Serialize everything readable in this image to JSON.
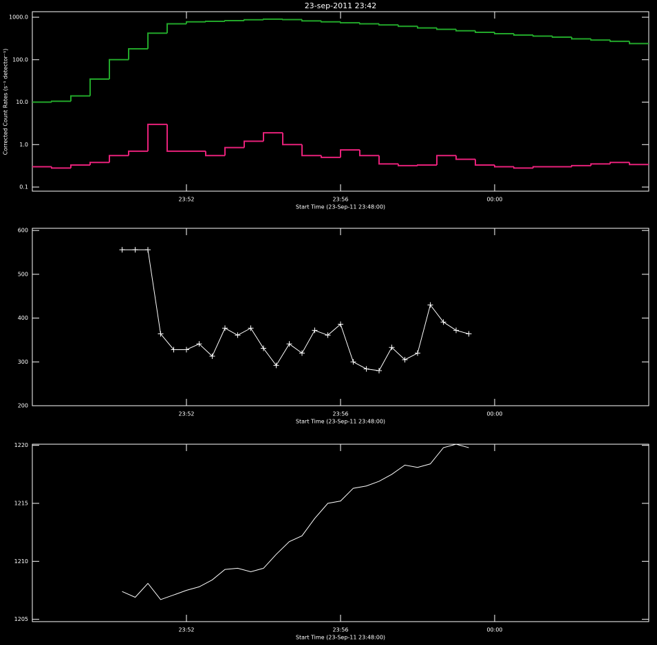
{
  "chart_data": [
    {
      "type": "step",
      "title": "23-sep-2011 23:42",
      "ylabel": "Corrected Count Rates (s⁻¹ detector⁻¹)",
      "xlabel": "Start Time (23-Sep-11 23:48:00)",
      "ylog": true,
      "xlim": [
        0,
        16
      ],
      "ylim": [
        0.08,
        1350
      ],
      "xticks": [
        {
          "value": 4,
          "label": "23:52"
        },
        {
          "value": 8,
          "label": "23:56"
        },
        {
          "value": 12,
          "label": "00:00"
        }
      ],
      "yticks": [
        0.1,
        {
          "value": 1,
          "label": "1.0"
        },
        {
          "value": 10,
          "label": "10.0"
        },
        {
          "value": 100,
          "label": "100.0"
        },
        {
          "value": 1000,
          "label": "1000.0"
        }
      ],
      "x": [
        0.25,
        0.75,
        1.25,
        1.75,
        2.25,
        2.75,
        3.25,
        3.75,
        4.25,
        4.75,
        5.25,
        5.75,
        6.25,
        6.75,
        7.25,
        7.75,
        8.25,
        8.75,
        9.25,
        9.75,
        10.25,
        10.75,
        11.25,
        11.75,
        12.25,
        12.75,
        13.25,
        13.75,
        14.25,
        14.75,
        15.25,
        15.75
      ],
      "series": [
        {
          "color": "#22a82a",
          "values": [
            10,
            10.5,
            14,
            35,
            100,
            180,
            420,
            700,
            780,
            800,
            830,
            870,
            900,
            880,
            820,
            780,
            740,
            700,
            660,
            610,
            560,
            520,
            480,
            440,
            410,
            380,
            360,
            340,
            310,
            290,
            270,
            240
          ]
        },
        {
          "color": "#e8217a",
          "values": [
            0.3,
            0.28,
            0.33,
            0.38,
            0.55,
            0.7,
            3.0,
            0.7,
            0.7,
            0.55,
            0.85,
            1.2,
            1.9,
            1.0,
            0.55,
            0.5,
            0.75,
            0.55,
            0.35,
            0.32,
            0.33,
            0.55,
            0.45,
            0.33,
            0.3,
            0.28,
            0.3,
            0.3,
            0.32,
            0.35,
            0.38,
            0.34
          ]
        }
      ]
    },
    {
      "type": "line",
      "markers": true,
      "xlabel": "Start Time (23-Sep-11 23:48:00)",
      "xlim": [
        0,
        16
      ],
      "ylim": [
        200,
        605
      ],
      "xticks": [
        {
          "value": 4,
          "label": "23:52"
        },
        {
          "value": 8,
          "label": "23:56"
        },
        {
          "value": 12,
          "label": "00:00"
        }
      ],
      "yticks": [
        200,
        300,
        400,
        500,
        600
      ],
      "x": [
        2.33,
        2.67,
        3,
        3.33,
        3.67,
        4,
        4.33,
        4.67,
        5,
        5.33,
        5.67,
        6,
        6.33,
        6.67,
        7,
        7.33,
        7.67,
        8,
        8.33,
        8.67,
        9,
        9.33,
        9.67,
        10,
        10.33,
        10.67,
        11,
        11.33
      ],
      "series": [
        {
          "color": "#ffffff",
          "values": [
            556,
            556,
            556,
            364,
            328,
            328,
            341,
            313,
            377,
            361,
            377,
            331,
            292,
            341,
            320,
            372,
            361,
            386,
            300,
            284,
            280,
            333,
            305,
            320,
            430,
            391,
            372,
            364
          ]
        }
      ]
    },
    {
      "type": "line",
      "markers": false,
      "xlabel": "Start Time (23-Sep-11 23:48:00)",
      "xlim": [
        0,
        16
      ],
      "ylim": [
        1204.8,
        1220.1
      ],
      "xticks": [
        {
          "value": 4,
          "label": "23:52"
        },
        {
          "value": 8,
          "label": "23:56"
        },
        {
          "value": 12,
          "label": "00:00"
        }
      ],
      "yticks": [
        1205,
        1210,
        1215,
        1220
      ],
      "x": [
        2.33,
        2.67,
        3,
        3.33,
        3.67,
        4,
        4.33,
        4.67,
        5,
        5.33,
        5.67,
        6,
        6.33,
        6.67,
        7,
        7.33,
        7.67,
        8,
        8.33,
        8.67,
        9,
        9.33,
        9.67,
        10,
        10.33,
        10.67,
        11,
        11.33
      ],
      "series": [
        {
          "color": "#ffffff",
          "values": [
            1207.4,
            1206.9,
            1208.1,
            1206.7,
            1207.1,
            1207.5,
            1207.8,
            1208.4,
            1209.3,
            1209.4,
            1209.1,
            1209.4,
            1210.6,
            1211.7,
            1212.2,
            1213.7,
            1215.0,
            1215.2,
            1216.3,
            1216.5,
            1216.9,
            1217.5,
            1218.3,
            1218.1,
            1218.4,
            1219.8,
            1220.1,
            1219.8
          ]
        }
      ]
    }
  ]
}
